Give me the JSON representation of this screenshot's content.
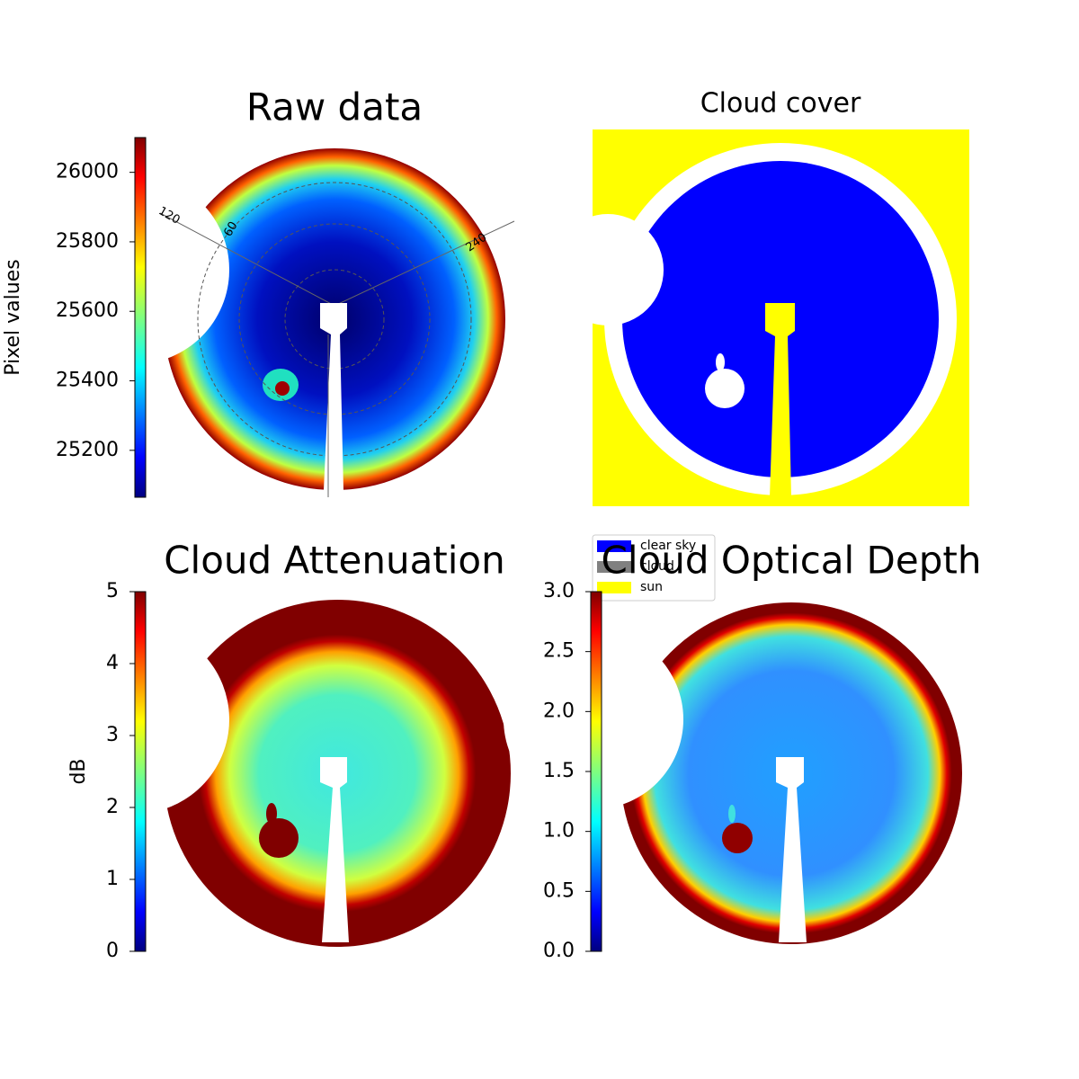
{
  "chart_data": [
    {
      "type": "image",
      "title": "Raw data",
      "colorbar_label": "Pixel values",
      "ylim": [
        25065,
        26100
      ],
      "yticks": [
        25200,
        25400,
        25600,
        25800,
        26000
      ],
      "annotations": [
        "120",
        "60",
        "240"
      ]
    },
    {
      "type": "image",
      "title": "Cloud cover",
      "legend": [
        {
          "name": "clear sky",
          "color": "#0000ff"
        },
        {
          "name": "cloud",
          "color": "#808080"
        },
        {
          "name": "sun",
          "color": "#ffff00"
        }
      ]
    },
    {
      "type": "image",
      "title": "Cloud Attenuation",
      "colorbar_label": "dB",
      "ylim": [
        0,
        5
      ],
      "yticks": [
        0,
        1,
        2,
        3,
        4,
        5
      ]
    },
    {
      "type": "image",
      "title": "Cloud Optical Depth",
      "ylim": [
        0,
        3
      ],
      "yticks": [
        {
          "value": 0,
          "label": "0.0"
        },
        0.5,
        {
          "value": 1,
          "label": "1.0"
        },
        1.5,
        {
          "value": 2,
          "label": "2.0"
        },
        2.5,
        {
          "value": 3,
          "label": "3.0"
        }
      ]
    }
  ]
}
